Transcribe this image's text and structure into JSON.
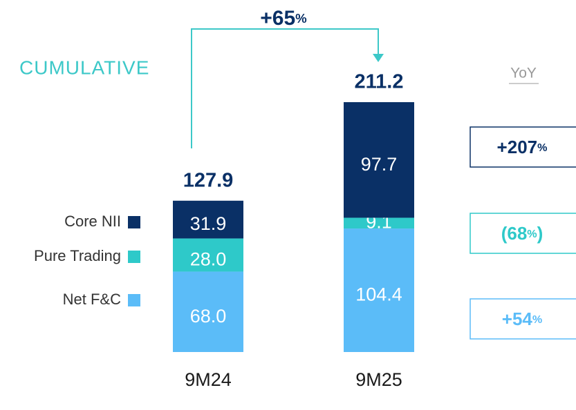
{
  "chart_data": {
    "type": "bar",
    "stacked": true,
    "annotation": "+65%",
    "subtitle": "CUMULATIVE",
    "yoy_title": "YoY",
    "categories": [
      "9M24",
      "9M25"
    ],
    "series": [
      {
        "name": "Net F&C",
        "color": "#5bbcf8",
        "values": [
          68.0,
          104.4
        ],
        "value_labels": [
          "68.0",
          "104.4"
        ],
        "yoy": "+54%"
      },
      {
        "name": "Pure Trading",
        "color": "#2ec9c9",
        "values": [
          28.0,
          9.1
        ],
        "value_labels": [
          "28.0",
          "9.1"
        ],
        "yoy": "(68%)"
      },
      {
        "name": "Core NII",
        "color": "#0a3066",
        "values": [
          31.9,
          97.7
        ],
        "value_labels": [
          "31.9",
          "97.7"
        ],
        "yoy": "+207%"
      }
    ],
    "totals": {
      "values": [
        127.9,
        211.2
      ]
    }
  }
}
